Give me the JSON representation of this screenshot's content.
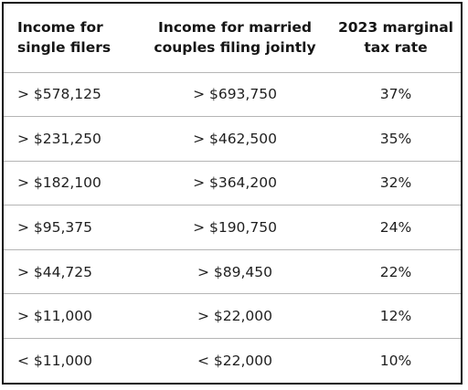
{
  "table": {
    "headers": [
      {
        "line1": "Income for",
        "line2": "single filers"
      },
      {
        "line1": "Income for married",
        "line2": "couples filing jointly"
      },
      {
        "line1": "2023 marginal",
        "line2": "tax rate"
      }
    ],
    "rows": [
      {
        "single": "> $578,125",
        "married": "> $693,750",
        "rate": "37%"
      },
      {
        "single": "> $231,250",
        "married": "> $462,500",
        "rate": "35%"
      },
      {
        "single": "> $182,100",
        "married": "> $364,200",
        "rate": "32%"
      },
      {
        "single": "> $95,375",
        "married": "> $190,750",
        "rate": "24%"
      },
      {
        "single": "> $44,725",
        "married": "> $89,450",
        "rate": "22%"
      },
      {
        "single": "> $11,000",
        "married": "> $22,000",
        "rate": "12%"
      },
      {
        "single": "< $11,000",
        "married": "< $22,000",
        "rate": "10%"
      }
    ]
  }
}
